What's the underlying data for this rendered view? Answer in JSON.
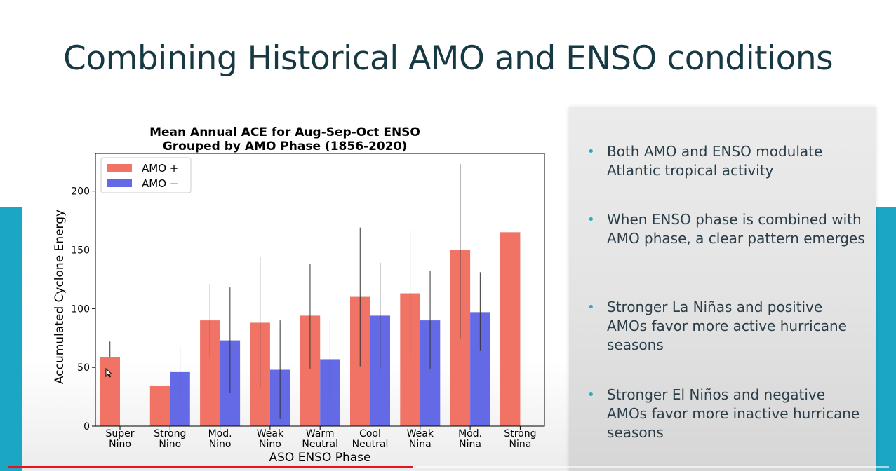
{
  "slide": {
    "title": "Combining Historical AMO and ENSO conditions",
    "bullets": [
      "Both AMO and ENSO modulate Atlantic tropical activity",
      "When ENSO phase is combined with AMO phase, a clear pattern emerges",
      "Stronger La Niñas and positive AMOs favor more active hurricane seasons",
      "Stronger El Niños and negative AMOs favor more inactive hurricane seasons"
    ]
  },
  "video": {
    "progress": 0.46
  },
  "chart_data": {
    "type": "bar",
    "title_lines": [
      "Mean Annual ACE for Aug-Sep-Oct ENSO",
      "Grouped by AMO Phase (1856-2020)"
    ],
    "xlabel": "ASO ENSO Phase",
    "ylabel": "Accumulated Cyclone Energy",
    "categories": [
      [
        "Super",
        "Nino"
      ],
      [
        "Strong",
        "Nino"
      ],
      [
        "Mod.",
        "Nino"
      ],
      [
        "Weak",
        "Nino"
      ],
      [
        "Warm",
        "Neutral"
      ],
      [
        "Cool",
        "Neutral"
      ],
      [
        "Weak",
        "Nina"
      ],
      [
        "Mod.",
        "Nina"
      ],
      [
        "Strong",
        "Nina"
      ]
    ],
    "yticks": [
      0,
      50,
      100,
      150,
      200
    ],
    "ylim": [
      0,
      232
    ],
    "legend_position": "top-left",
    "series": [
      {
        "name": "AMO +",
        "color": "#f07366",
        "values": [
          59,
          34,
          90,
          88,
          94,
          110,
          113,
          150,
          165
        ],
        "err_low": [
          null,
          null,
          59,
          32,
          49,
          51,
          58,
          75,
          null
        ],
        "err_high": [
          72,
          null,
          121,
          144,
          138,
          169,
          167,
          223,
          null
        ]
      },
      {
        "name": "AMO −",
        "color": "#6469e6",
        "values": [
          null,
          46,
          73,
          48,
          57,
          94,
          90,
          97,
          null
        ],
        "err_low": [
          null,
          23,
          28,
          6,
          23,
          49,
          49,
          64,
          null
        ],
        "err_high": [
          null,
          68,
          118,
          90,
          91,
          139,
          132,
          131,
          null
        ]
      }
    ]
  }
}
